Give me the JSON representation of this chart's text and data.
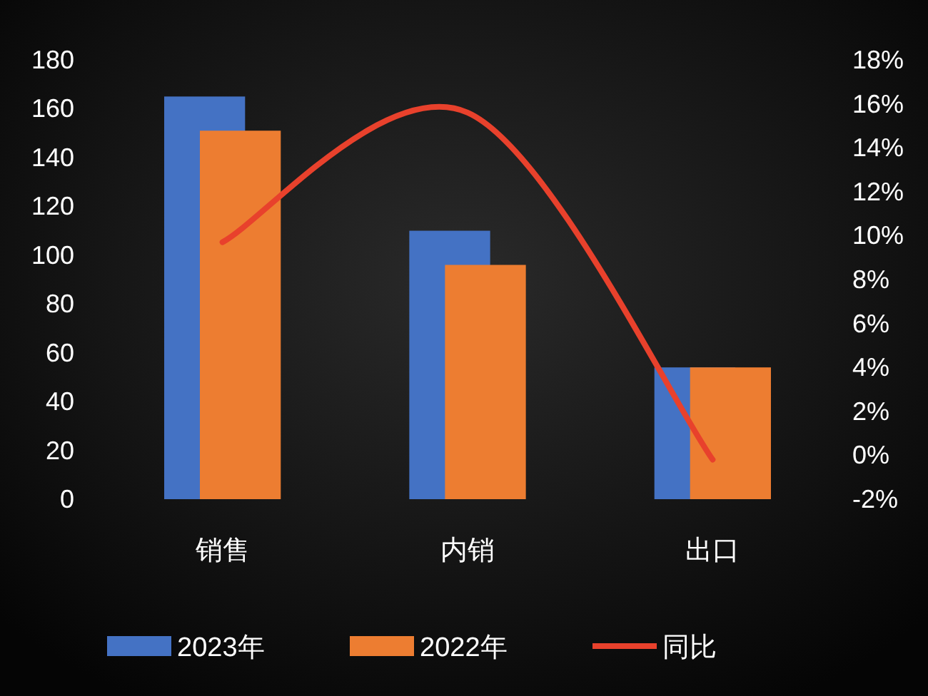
{
  "chart_data": {
    "type": "bar",
    "categories": [
      "销售",
      "内销",
      "出口"
    ],
    "series": [
      {
        "name": "2023年",
        "color": "#4472c4",
        "values": [
          165,
          110,
          54
        ]
      },
      {
        "name": "2022年",
        "color": "#ed7d31",
        "values": [
          151,
          96,
          54
        ]
      },
      {
        "name": "同比",
        "type": "line",
        "axis": "y2",
        "color": "#e8412c",
        "values": [
          9.7,
          15.6,
          -0.2
        ]
      }
    ],
    "ylim": [
      0,
      180
    ],
    "yticks": [
      0,
      20,
      40,
      60,
      80,
      100,
      120,
      140,
      160,
      180
    ],
    "y2lim": [
      -2,
      18
    ],
    "y2ticks": [
      {
        "value": -2,
        "label": "-2%"
      },
      {
        "value": 0,
        "label": "0%"
      },
      {
        "value": 2,
        "label": "2%"
      },
      {
        "value": 4,
        "label": "4%"
      },
      {
        "value": 6,
        "label": "6%"
      },
      {
        "value": 8,
        "label": "8%"
      },
      {
        "value": 10,
        "label": "10%"
      },
      {
        "value": 12,
        "label": "12%"
      },
      {
        "value": 14,
        "label": "14%"
      },
      {
        "value": 16,
        "label": "16%"
      },
      {
        "value": 18,
        "label": "18%"
      }
    ],
    "grid": false,
    "legend": "bottom"
  }
}
